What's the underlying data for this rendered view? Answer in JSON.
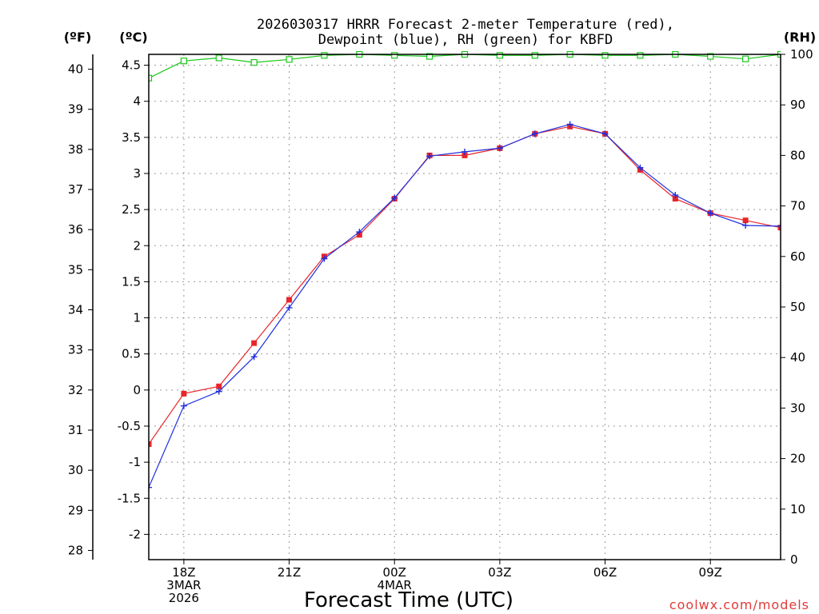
{
  "chart_data": {
    "type": "line",
    "title_line1": "2026030317 HRRR Forecast 2-meter Temperature (red),",
    "title_line2": "Dewpoint (blue), RH (green) for KBFD",
    "unit_f": "(ºF)",
    "unit_c": "(ºC)",
    "unit_rh": "(RH)",
    "xlabel": "Forecast Time (UTC)",
    "credit": "coolwx.com/models",
    "x_hours": [
      17,
      18,
      19,
      20,
      21,
      22,
      23,
      24,
      25,
      26,
      27,
      28,
      29,
      30,
      31,
      32,
      33,
      34,
      35
    ],
    "x_ticks": [
      {
        "h": 18,
        "lines": [
          "18Z",
          "3MAR",
          "2026"
        ]
      },
      {
        "h": 21,
        "lines": [
          "21Z"
        ]
      },
      {
        "h": 24,
        "lines": [
          "00Z",
          "4MAR"
        ]
      },
      {
        "h": 27,
        "lines": [
          "03Z"
        ]
      },
      {
        "h": 30,
        "lines": [
          "06Z"
        ]
      },
      {
        "h": 33,
        "lines": [
          "09Z"
        ]
      }
    ],
    "xlim": [
      17,
      35
    ],
    "c_lim": [
      -2.35,
      4.65
    ],
    "c_ticks": [
      "-2",
      "-1.5",
      "-1",
      "-0.5",
      "0",
      "0.5",
      "1",
      "1.5",
      "2",
      "2.5",
      "3",
      "3.5",
      "4",
      "4.5"
    ],
    "f_ticks": [
      "28",
      "29",
      "30",
      "31",
      "32",
      "33",
      "34",
      "35",
      "36",
      "37",
      "38",
      "39",
      "40"
    ],
    "rh_lim": [
      0,
      100
    ],
    "rh_ticks": [
      "0",
      "10",
      "20",
      "30",
      "40",
      "50",
      "60",
      "70",
      "80",
      "90",
      "100"
    ],
    "series": [
      {
        "name": "Temperature",
        "color": "#e8262a",
        "marker": "filled-square",
        "values": [
          -0.75,
          -0.05,
          0.05,
          0.65,
          1.25,
          1.85,
          2.15,
          2.65,
          3.25,
          3.25,
          3.35,
          3.55,
          3.65,
          3.55,
          3.05,
          2.65,
          2.45,
          2.35,
          2.25
        ]
      },
      {
        "name": "Dewpoint",
        "color": "#1f2fe0",
        "marker": "plus",
        "values": [
          -1.35,
          -0.22,
          -0.02,
          0.46,
          1.14,
          1.82,
          2.19,
          2.66,
          3.24,
          3.3,
          3.35,
          3.55,
          3.68,
          3.55,
          3.08,
          2.7,
          2.45,
          2.28,
          2.27
        ]
      },
      {
        "name": "RH",
        "color": "#19c819",
        "marker": "open-square",
        "values": [
          95.3,
          98.7,
          99.3,
          98.4,
          99,
          99.8,
          100,
          99.8,
          99.6,
          100,
          99.8,
          99.8,
          100,
          99.8,
          99.8,
          100,
          99.6,
          99.1,
          100
        ]
      }
    ]
  }
}
